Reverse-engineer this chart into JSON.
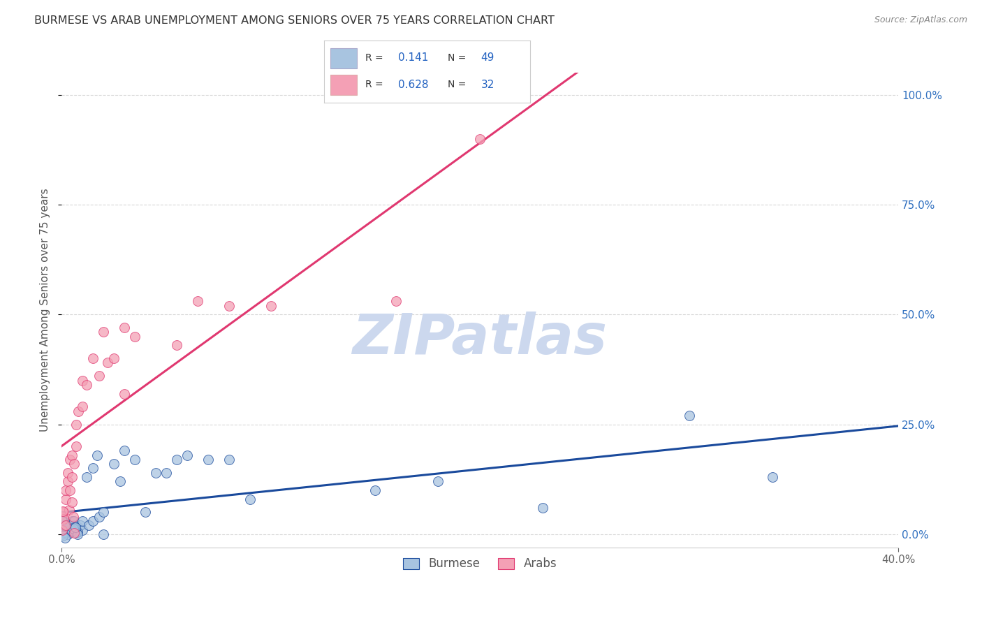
{
  "title": "BURMESE VS ARAB UNEMPLOYMENT AMONG SENIORS OVER 75 YEARS CORRELATION CHART",
  "source": "Source: ZipAtlas.com",
  "ylabel": "Unemployment Among Seniors over 75 years",
  "xlabel_burmese": "Burmese",
  "xlabel_arab": "Arabs",
  "xlim": [
    0.0,
    0.4
  ],
  "ylim": [
    -0.03,
    1.05
  ],
  "xticks": [
    0.0,
    0.4
  ],
  "xtick_labels": [
    "0.0%",
    "40.0%"
  ],
  "yticks_right": [
    0.0,
    0.25,
    0.5,
    0.75,
    1.0
  ],
  "ytick_labels_right": [
    "0.0%",
    "25.0%",
    "50.0%",
    "75.0%",
    "100.0%"
  ],
  "R_burmese": 0.141,
  "N_burmese": 49,
  "R_arab": 0.628,
  "N_arab": 32,
  "burmese_color": "#a8c4e0",
  "arab_color": "#f4a0b5",
  "burmese_line_color": "#1a4a9c",
  "arab_line_color": "#e03870",
  "legend_text_color": "#2060c0",
  "title_color": "#333333",
  "watermark": "ZIPatlas",
  "watermark_color": "#ccd8ee",
  "burmese_x": [
    0.0,
    0.0,
    0.0,
    0.0,
    0.001,
    0.001,
    0.002,
    0.002,
    0.002,
    0.003,
    0.003,
    0.004,
    0.004,
    0.004,
    0.005,
    0.005,
    0.005,
    0.006,
    0.006,
    0.007,
    0.008,
    0.009,
    0.01,
    0.01,
    0.012,
    0.013,
    0.015,
    0.015,
    0.017,
    0.018,
    0.02,
    0.02,
    0.025,
    0.028,
    0.03,
    0.035,
    0.04,
    0.045,
    0.05,
    0.055,
    0.06,
    0.07,
    0.08,
    0.09,
    0.15,
    0.18,
    0.23,
    0.3,
    0.34
  ],
  "burmese_y": [
    0.0,
    0.01,
    0.02,
    0.04,
    0.01,
    0.03,
    0.005,
    0.01,
    0.02,
    0.01,
    0.02,
    0.005,
    0.01,
    0.02,
    0.01,
    0.02,
    0.03,
    0.02,
    0.03,
    0.01,
    0.015,
    0.02,
    0.01,
    0.03,
    0.13,
    0.02,
    0.03,
    0.15,
    0.18,
    0.04,
    0.0,
    0.05,
    0.16,
    0.12,
    0.19,
    0.17,
    0.05,
    0.14,
    0.14,
    0.17,
    0.18,
    0.17,
    0.17,
    0.08,
    0.1,
    0.12,
    0.06,
    0.27,
    0.13
  ],
  "arab_x": [
    0.0,
    0.0,
    0.001,
    0.002,
    0.002,
    0.003,
    0.003,
    0.004,
    0.004,
    0.005,
    0.005,
    0.006,
    0.007,
    0.007,
    0.008,
    0.01,
    0.01,
    0.012,
    0.015,
    0.018,
    0.02,
    0.022,
    0.025,
    0.03,
    0.03,
    0.035,
    0.055,
    0.065,
    0.08,
    0.1,
    0.16,
    0.2
  ],
  "arab_y": [
    0.01,
    0.04,
    0.05,
    0.08,
    0.1,
    0.12,
    0.14,
    0.1,
    0.17,
    0.13,
    0.18,
    0.16,
    0.2,
    0.25,
    0.28,
    0.29,
    0.35,
    0.34,
    0.4,
    0.36,
    0.46,
    0.39,
    0.4,
    0.47,
    0.32,
    0.45,
    0.43,
    0.53,
    0.52,
    0.52,
    0.53,
    0.9
  ],
  "grid_color": "#d8d8d8",
  "background_color": "#ffffff",
  "scatter_size": 100,
  "scatter_alpha": 0.75
}
